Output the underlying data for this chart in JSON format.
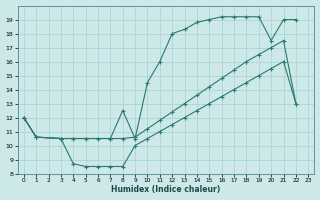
{
  "line_bottom_x": [
    0,
    1,
    3,
    4,
    5,
    6,
    7,
    8,
    9,
    10,
    11,
    12,
    13,
    14,
    15,
    16,
    17,
    18,
    19,
    20,
    21,
    22
  ],
  "line_bottom_y": [
    12,
    10.6,
    10.5,
    8.7,
    8.5,
    8.5,
    8.5,
    8.5,
    10.0,
    10.5,
    11.0,
    11.5,
    12.0,
    12.5,
    13.0,
    13.5,
    14.0,
    14.5,
    15.0,
    15.5,
    16.0,
    13.0
  ],
  "line_top_x": [
    0,
    1,
    3,
    7,
    8,
    9,
    10,
    11,
    12,
    13,
    14,
    15,
    16,
    17,
    18,
    19,
    20,
    21,
    22
  ],
  "line_top_y": [
    12,
    10.6,
    10.5,
    10.5,
    12.5,
    10.5,
    14.5,
    16.0,
    18.0,
    18.3,
    18.8,
    19.0,
    19.2,
    19.2,
    19.2,
    19.2,
    17.5,
    19.0,
    19.0
  ],
  "line_mid_x": [
    0,
    1,
    3,
    4,
    5,
    6,
    7,
    8,
    9,
    10,
    11,
    12,
    13,
    14,
    15,
    16,
    17,
    18,
    19,
    20,
    21,
    22
  ],
  "line_mid_y": [
    12,
    10.6,
    10.5,
    10.5,
    10.5,
    10.5,
    10.5,
    10.5,
    10.6,
    11.2,
    11.8,
    12.4,
    13.0,
    13.6,
    14.2,
    14.8,
    15.4,
    16.0,
    16.5,
    17.0,
    17.5,
    13.0
  ],
  "color": "#2a7a6e",
  "bg_color": "#cce8e8",
  "grid_color": "#a8d0d0",
  "xlabel": "Humidex (Indice chaleur)",
  "ylim": [
    8,
    20
  ],
  "xlim": [
    -0.5,
    23.5
  ],
  "yticks": [
    8,
    9,
    10,
    11,
    12,
    13,
    14,
    15,
    16,
    17,
    18,
    19
  ],
  "xticks": [
    0,
    1,
    2,
    3,
    4,
    5,
    6,
    7,
    8,
    9,
    10,
    11,
    12,
    13,
    14,
    15,
    16,
    17,
    18,
    19,
    20,
    21,
    22,
    23
  ],
  "xtick_labels": [
    "0",
    "1",
    "2",
    "3",
    "4",
    "5",
    "6",
    "7",
    "8",
    "9",
    "10",
    "11",
    "12",
    "13",
    "14",
    "15",
    "16",
    "17",
    "18",
    "19",
    "20",
    "21",
    "22",
    "23"
  ]
}
